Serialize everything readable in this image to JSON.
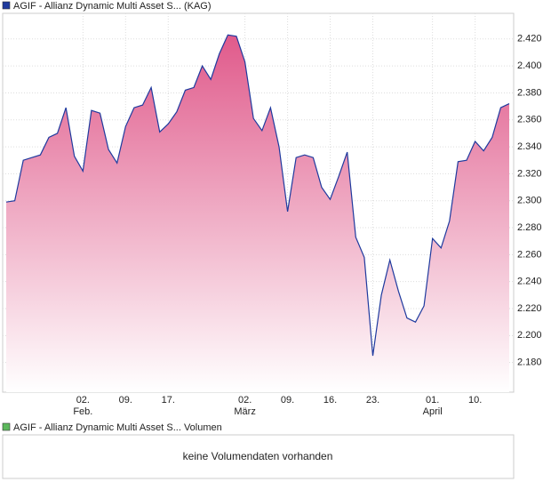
{
  "chart_data": {
    "type": "area",
    "title": "AGIF - Allianz Dynamic Multi Asset S... (KAG)",
    "color": "#1f3a9e",
    "fill_top": "#e05a8b",
    "categories": [
      null,
      null,
      null,
      null,
      null,
      null,
      null,
      null,
      null,
      "02.",
      null,
      null,
      null,
      null,
      "09.",
      null,
      null,
      null,
      null,
      "17.",
      null,
      null,
      null,
      null,
      null,
      null,
      null,
      null,
      "02.",
      null,
      null,
      null,
      null,
      "09.",
      null,
      null,
      null,
      null,
      "16.",
      null,
      null,
      null,
      null,
      "23.",
      null,
      null,
      null,
      null,
      null,
      null,
      "01.",
      null,
      null,
      null,
      null,
      "10.",
      null,
      null,
      null,
      null
    ],
    "month_labels": [
      null,
      null,
      null,
      null,
      null,
      null,
      null,
      null,
      null,
      "Feb.",
      null,
      null,
      null,
      null,
      null,
      null,
      null,
      null,
      null,
      null,
      null,
      null,
      null,
      null,
      null,
      null,
      null,
      null,
      "März",
      null,
      null,
      null,
      null,
      null,
      null,
      null,
      null,
      null,
      null,
      null,
      null,
      null,
      null,
      null,
      null,
      null,
      null,
      null,
      null,
      null,
      "April",
      null,
      null,
      null,
      null,
      null,
      null,
      null,
      null,
      null
    ],
    "values": [
      2.299,
      2.3,
      2.33,
      2.332,
      2.334,
      2.347,
      2.35,
      2.369,
      2.333,
      2.322,
      2.367,
      2.365,
      2.338,
      2.328,
      2.355,
      2.369,
      2.371,
      2.384,
      2.351,
      2.357,
      2.366,
      2.382,
      2.384,
      2.4,
      2.39,
      2.409,
      2.423,
      2.422,
      2.403,
      2.361,
      2.352,
      2.369,
      2.34,
      2.292,
      2.332,
      2.334,
      2.332,
      2.31,
      2.301,
      2.318,
      2.336,
      2.273,
      2.258,
      2.185,
      2.23,
      2.256,
      2.233,
      2.213,
      2.21,
      2.222,
      2.272,
      2.265,
      2.285,
      2.329,
      2.33,
      2.344,
      2.337,
      2.347,
      2.369,
      2.372
    ],
    "ylim": [
      2.158,
      2.439
    ],
    "yticks": [
      {
        "value": 2.18,
        "label": "2.180"
      },
      {
        "value": 2.2,
        "label": "2.200"
      },
      {
        "value": 2.22,
        "label": "2.220"
      },
      {
        "value": 2.24,
        "label": "2.240"
      },
      {
        "value": 2.26,
        "label": "2.260"
      },
      {
        "value": 2.28,
        "label": "2.280"
      },
      {
        "value": 2.3,
        "label": "2.300"
      },
      {
        "value": 2.32,
        "label": "2.320"
      },
      {
        "value": 2.34,
        "label": "2.340"
      },
      {
        "value": 2.36,
        "label": "2.360"
      },
      {
        "value": 2.38,
        "label": "2.380"
      },
      {
        "value": 2.4,
        "label": "2.400"
      },
      {
        "value": 2.42,
        "label": "2.420"
      }
    ],
    "grid": true,
    "volume": {
      "title": "AGIF - Allianz Dynamic Multi Asset S... Volumen",
      "color": "#5cb85c",
      "message": "keine Volumendaten vorhanden"
    }
  }
}
